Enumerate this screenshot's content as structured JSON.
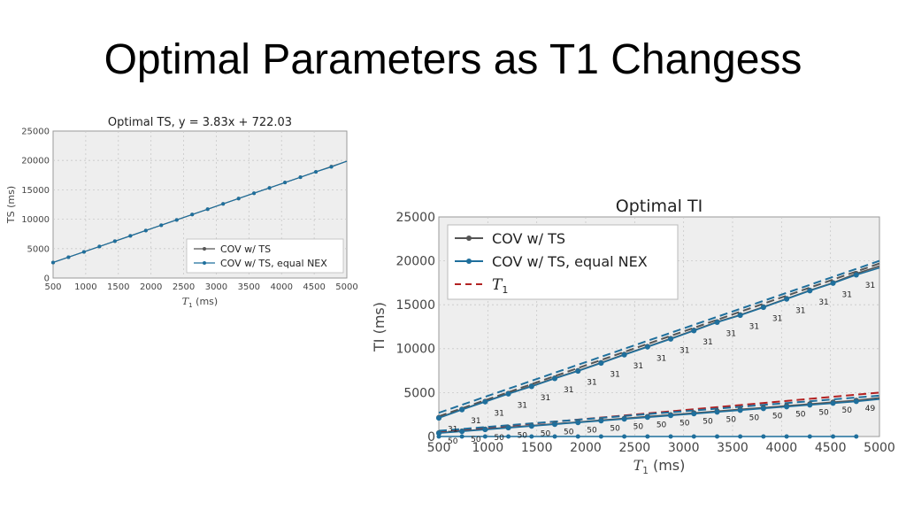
{
  "slide": {
    "title": "Optimal Parameters as T1 Changess"
  },
  "colors": {
    "cov_ts": "#555555",
    "cov_ts_equal_nex": "#1f6f9c",
    "t1": "#b22222",
    "plot_bg": "#eeeeee",
    "grid": "#c8c8c8"
  },
  "chart_data": [
    {
      "type": "line",
      "title": "Optimal TS, y = 3.83x + 722.03",
      "xlabel": "T",
      "xlabel_sub": "1",
      "xlabel_unit": "(ms)",
      "ylabel": "TS (ms)",
      "xlim": [
        500,
        5000
      ],
      "ylim": [
        0,
        25000
      ],
      "xticks": [
        500,
        1000,
        1500,
        2000,
        2500,
        3000,
        3500,
        4000,
        4500,
        5000
      ],
      "yticks": [
        0,
        5000,
        10000,
        15000,
        20000,
        25000
      ],
      "grid": true,
      "legend_position": "lower-right",
      "legend": [
        "COV w/ TS",
        "COV w/ TS, equal NEX"
      ],
      "x": [
        500,
        736,
        973,
        1210,
        1447,
        1684,
        1921,
        2157,
        2394,
        2631,
        2868,
        3105,
        3342,
        3578,
        3815,
        4052,
        4289,
        4526,
        4763
      ],
      "series": [
        {
          "name": "COV w/ TS",
          "values": [
            2637,
            3541,
            4449,
            5356,
            6264,
            7172,
            8079,
            8983,
            9891,
            10799,
            11706,
            12614,
            13522,
            14426,
            15333,
            16241,
            17149,
            18056,
            18964
          ]
        },
        {
          "name": "COV w/ TS, equal NEX",
          "values": [
            2637,
            3541,
            4449,
            5356,
            6264,
            7172,
            8079,
            8983,
            9891,
            10799,
            11706,
            12614,
            13522,
            14426,
            15333,
            16241,
            17149,
            18056,
            18900
          ]
        }
      ],
      "fit_line": {
        "slope": 3.83,
        "intercept": 722.03
      }
    },
    {
      "type": "line",
      "title": "Optimal TI",
      "xlabel": "T",
      "xlabel_sub": "1",
      "xlabel_unit": "(ms)",
      "ylabel": "TI (ms)",
      "xlim": [
        500,
        5000
      ],
      "ylim": [
        0,
        25000
      ],
      "xticks": [
        500,
        1000,
        1500,
        2000,
        2500,
        3000,
        3500,
        4000,
        4500,
        5000
      ],
      "yticks": [
        0,
        5000,
        10000,
        15000,
        20000,
        25000
      ],
      "grid": true,
      "legend_position": "upper-left",
      "legend": [
        "COV w/ TS",
        "COV w/ TS, equal NEX",
        "T1"
      ],
      "legend_labels": {
        "cov_ts": "COV w/ TS",
        "equal_nex": "COV w/ TS, equal NEX",
        "t1_main": "T",
        "t1_sub": "1"
      },
      "x": [
        500,
        736,
        973,
        1210,
        1447,
        1684,
        1921,
        2157,
        2394,
        2631,
        2868,
        3105,
        3342,
        3578,
        3815,
        4052,
        4289,
        4526,
        4763
      ],
      "series": [
        {
          "name": "COV w/ TS",
          "curve": "upper",
          "values": [
            2150,
            3100,
            4000,
            4900,
            5750,
            6650,
            7500,
            8400,
            9350,
            10250,
            11150,
            12100,
            13050,
            13850,
            14750,
            15700,
            16650,
            17500,
            18550
          ]
        },
        {
          "name": "COV w/ TS, equal NEX",
          "curve": "upper",
          "values": [
            2100,
            3050,
            3950,
            4850,
            5700,
            6600,
            7450,
            8350,
            9300,
            10200,
            11100,
            12050,
            13000,
            13800,
            14700,
            15650,
            16600,
            17450,
            18400
          ]
        },
        {
          "name": "COV w/ TS",
          "curve": "lower",
          "values": [
            420,
            620,
            830,
            1040,
            1240,
            1450,
            1650,
            1860,
            2060,
            2270,
            2470,
            2680,
            2880,
            3090,
            3290,
            3500,
            3700,
            3910,
            4110
          ]
        },
        {
          "name": "COV w/ TS, equal NEX",
          "curve": "lower",
          "values": [
            380,
            580,
            790,
            990,
            1190,
            1390,
            1590,
            1790,
            1990,
            2190,
            2390,
            2590,
            2790,
            2990,
            3190,
            3390,
            3590,
            3790,
            3990
          ]
        },
        {
          "name": "COV w/ TS, equal NEX",
          "curve": "zero",
          "values": [
            0,
            0,
            0,
            0,
            0,
            0,
            0,
            0,
            0,
            0,
            0,
            0,
            0,
            0,
            0,
            0,
            0,
            0,
            0
          ]
        }
      ],
      "dashed_lines": [
        {
          "name": "T1",
          "color": "t1",
          "y_at_xmin": 500,
          "y_at_xmax": 5000
        },
        {
          "color": "cov_ts",
          "y_at_xmin": 2300,
          "y_at_xmax": 19700
        },
        {
          "color": "cov_ts_equal_nex",
          "y_at_xmin": 2700,
          "y_at_xmax": 20000
        },
        {
          "color": "cov_ts_equal_nex",
          "y_at_xmin": 650,
          "y_at_xmax": 4650
        }
      ],
      "annotations": {
        "upper": [
          "31",
          "31",
          "31",
          "31",
          "31",
          "31",
          "31",
          "31",
          "31",
          "31",
          "31",
          "31",
          "31",
          "31",
          "31",
          "31",
          "31",
          "31",
          "31"
        ],
        "lower": [
          "50",
          "50",
          "50",
          "50",
          "50",
          "50",
          "50",
          "50",
          "50",
          "50",
          "50",
          "50",
          "50",
          "50",
          "50",
          "50",
          "50",
          "50",
          "49"
        ]
      }
    }
  ]
}
